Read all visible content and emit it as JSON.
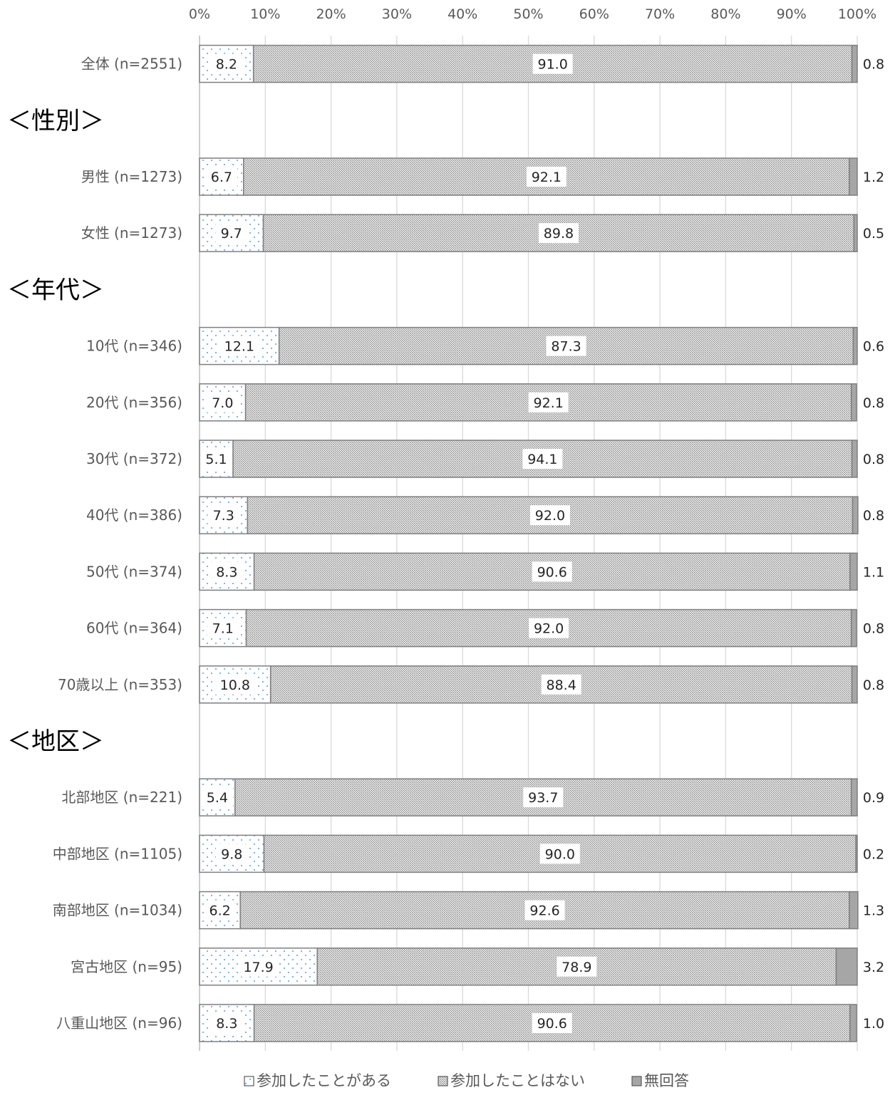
{
  "chart_data": {
    "type": "bar",
    "orientation": "horizontal",
    "stacked": "percent",
    "xlim": [
      0,
      100
    ],
    "x_ticks": [
      "0%",
      "10%",
      "20%",
      "30%",
      "40%",
      "50%",
      "60%",
      "70%",
      "80%",
      "90%",
      "100%"
    ],
    "grid": true,
    "legend_position": "bottom",
    "series": [
      {
        "name": "参加したことがある",
        "pattern": "dots",
        "color": "#ffffff"
      },
      {
        "name": "参加したことはない",
        "pattern": "crosshatch",
        "color": "#bfbfbf"
      },
      {
        "name": "無回答",
        "pattern": "solid",
        "color": "#a6a6a6"
      }
    ],
    "rows": [
      {
        "kind": "bar",
        "label": "全体 (n=2551)",
        "values": [
          8.2,
          91.0,
          0.8
        ]
      },
      {
        "kind": "section",
        "label": "＜性別＞"
      },
      {
        "kind": "bar",
        "label": "男性 (n=1273)",
        "values": [
          6.7,
          92.1,
          1.2
        ]
      },
      {
        "kind": "bar",
        "label": "女性 (n=1273)",
        "values": [
          9.7,
          89.8,
          0.5
        ]
      },
      {
        "kind": "section",
        "label": "＜年代＞"
      },
      {
        "kind": "bar",
        "label": "10代 (n=346)",
        "values": [
          12.1,
          87.3,
          0.6
        ]
      },
      {
        "kind": "bar",
        "label": "20代 (n=356)",
        "values": [
          7.0,
          92.1,
          0.8
        ]
      },
      {
        "kind": "bar",
        "label": "30代 (n=372)",
        "values": [
          5.1,
          94.1,
          0.8
        ]
      },
      {
        "kind": "bar",
        "label": "40代 (n=386)",
        "values": [
          7.3,
          92.0,
          0.8
        ]
      },
      {
        "kind": "bar",
        "label": "50代 (n=374)",
        "values": [
          8.3,
          90.6,
          1.1
        ]
      },
      {
        "kind": "bar",
        "label": "60代 (n=364)",
        "values": [
          7.1,
          92.0,
          0.8
        ]
      },
      {
        "kind": "bar",
        "label": "70歳以上 (n=353)",
        "values": [
          10.8,
          88.4,
          0.8
        ]
      },
      {
        "kind": "section",
        "label": "＜地区＞"
      },
      {
        "kind": "bar",
        "label": "北部地区 (n=221)",
        "values": [
          5.4,
          93.7,
          0.9
        ]
      },
      {
        "kind": "bar",
        "label": "中部地区 (n=1105)",
        "values": [
          9.8,
          90.0,
          0.2
        ]
      },
      {
        "kind": "bar",
        "label": "南部地区 (n=1034)",
        "values": [
          6.2,
          92.6,
          1.3
        ]
      },
      {
        "kind": "bar",
        "label": "宮古地区 (n=95)",
        "values": [
          17.9,
          78.9,
          3.2
        ]
      },
      {
        "kind": "bar",
        "label": "八重山地区 (n=96)",
        "values": [
          8.3,
          90.6,
          1.0
        ]
      }
    ]
  }
}
